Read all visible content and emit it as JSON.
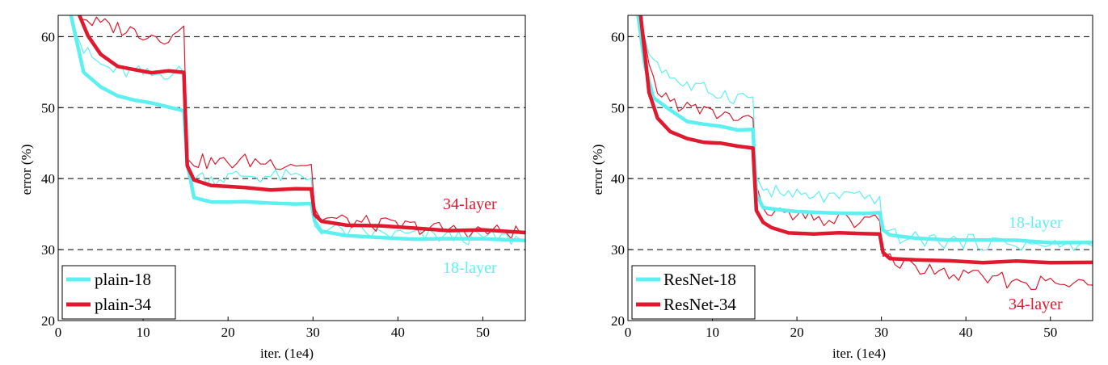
{
  "chart_data": [
    {
      "type": "line",
      "xlabel": "iter. (1e4)",
      "ylabel": "error (%)",
      "xlim": [
        0,
        55
      ],
      "ylim": [
        20,
        63
      ],
      "xticks": [
        0,
        10,
        20,
        30,
        40,
        50
      ],
      "yticks": [
        20,
        30,
        40,
        50,
        60
      ],
      "grid": "dashed horizontal",
      "legend_position": "bottom-left",
      "series": [
        {
          "name": "plain-18",
          "role": "val",
          "color": "#5ef0f0",
          "x": [
            1.5,
            3,
            5,
            7,
            9,
            11,
            13,
            14.8,
            15.2,
            16,
            18,
            20,
            22,
            25,
            28,
            29.8,
            30.2,
            31,
            34,
            38,
            42,
            46,
            50,
            55
          ],
          "y": [
            63,
            55,
            53,
            51.5,
            51,
            50.5,
            50,
            49.7,
            42,
            37.5,
            36.8,
            36.6,
            36.7,
            36.7,
            36.6,
            36.6,
            34,
            32.6,
            32.1,
            31.9,
            31.6,
            31.5,
            31.4,
            31.3
          ]
        },
        {
          "name": "plain-34",
          "role": "val",
          "color": "#e0192e",
          "x": [
            2.5,
            3.5,
            5,
            7,
            9,
            11,
            13,
            14.8,
            15.2,
            16,
            18,
            20,
            22,
            25,
            28,
            29.8,
            30.2,
            31,
            34,
            38,
            42,
            46,
            50,
            55
          ],
          "y": [
            63,
            60,
            57.5,
            56,
            55.5,
            55,
            55,
            55,
            42,
            39.8,
            39,
            38.8,
            38.7,
            38.6,
            38.6,
            38.6,
            35,
            34,
            33.5,
            33.2,
            32.9,
            32.7,
            32.6,
            32.4
          ]
        },
        {
          "name": "plain-18 train",
          "role": "train",
          "color": "#5ef0f0",
          "x": [
            1.5,
            3,
            5,
            7,
            9,
            11,
            13,
            14.8,
            15.2,
            16,
            18,
            20,
            22,
            25,
            28,
            29.8,
            30.2,
            31,
            34,
            38,
            42,
            46,
            50,
            55
          ],
          "y": [
            63,
            58,
            56,
            55,
            55,
            54.5,
            55,
            55,
            41.5,
            40.5,
            40,
            40.2,
            40.5,
            40.3,
            40.2,
            40,
            33.5,
            33,
            32.5,
            32.2,
            32,
            31.8,
            31.7,
            31.5
          ]
        },
        {
          "name": "plain-34 train",
          "role": "train",
          "color": "#e0192e",
          "x": [
            2.7,
            4,
            6,
            8,
            10,
            12,
            14,
            14.8,
            15.2,
            16,
            18,
            20,
            22,
            25,
            28,
            29.8,
            30.2,
            31,
            34,
            38,
            42,
            46,
            50,
            55
          ],
          "y": [
            63,
            62,
            61.5,
            61,
            60.5,
            60,
            60,
            61.5,
            43.5,
            42.5,
            42.3,
            42.2,
            42.5,
            42.3,
            42.2,
            42,
            35.5,
            34.5,
            34,
            33.5,
            33.2,
            32.8,
            32.6,
            32.4
          ]
        }
      ],
      "annotations": [
        {
          "text": "34-layer",
          "color": "#e0192e"
        },
        {
          "text": "18-layer",
          "color": "#5ef0f0"
        }
      ]
    },
    {
      "type": "line",
      "xlabel": "iter. (1e4)",
      "ylabel": "error (%)",
      "xlim": [
        0,
        55
      ],
      "ylim": [
        20,
        63
      ],
      "xticks": [
        0,
        10,
        20,
        30,
        40,
        50
      ],
      "yticks": [
        20,
        30,
        40,
        50,
        60
      ],
      "grid": "dashed horizontal",
      "legend_position": "bottom-left",
      "series": [
        {
          "name": "ResNet-18",
          "role": "val",
          "color": "#5ef0f0",
          "x": [
            1.2,
            2,
            3,
            5,
            7,
            9,
            11,
            13,
            14.8,
            15.2,
            16,
            18,
            20,
            22,
            25,
            28,
            29.8,
            30.2,
            31,
            34,
            38,
            42,
            46,
            50,
            55
          ],
          "y": [
            63,
            56,
            51.5,
            49.5,
            48,
            47.5,
            47.3,
            47,
            46.8,
            38,
            36,
            35.5,
            35.3,
            35.4,
            35.3,
            35.2,
            35.2,
            32.8,
            32.2,
            31.8,
            31.5,
            31.3,
            31.2,
            31.1,
            31
          ]
        },
        {
          "name": "ResNet-34",
          "role": "val",
          "color": "#e0192e",
          "x": [
            1.5,
            2.5,
            3.5,
            5,
            7,
            9,
            11,
            13,
            14.8,
            15.2,
            16,
            17,
            19,
            22,
            25,
            28,
            29.8,
            30.2,
            31,
            34,
            38,
            42,
            46,
            50,
            55
          ],
          "y": [
            63,
            52,
            48.5,
            46.8,
            45.8,
            45.2,
            44.8,
            44.6,
            44.5,
            35.5,
            33.8,
            33,
            32.3,
            32.4,
            32.4,
            32.3,
            32.3,
            29.6,
            28.8,
            28.4,
            28.3,
            28.2,
            28.2,
            28.2,
            28.2
          ]
        },
        {
          "name": "ResNet-18 train",
          "role": "train",
          "color": "#5ef0f0",
          "x": [
            1.2,
            2,
            3,
            5,
            7,
            9,
            11,
            13,
            14.8,
            15.2,
            16,
            18,
            20,
            22,
            25,
            28,
            29.8,
            30.2,
            31,
            34,
            38,
            42,
            46,
            50,
            55
          ],
          "y": [
            63,
            59,
            57,
            54.5,
            53,
            52.5,
            52,
            51.5,
            51.5,
            40,
            38.5,
            38,
            37.5,
            37.5,
            37.3,
            37.2,
            37.5,
            33,
            32,
            31.5,
            31.2,
            31,
            30.8,
            30.5,
            30.5
          ]
        },
        {
          "name": "ResNet-34 train",
          "role": "train",
          "color": "#e0192e",
          "x": [
            1.5,
            2.5,
            3.5,
            5,
            7,
            9,
            11,
            13,
            14.8,
            15.2,
            16,
            18,
            20,
            22,
            25,
            28,
            29.8,
            30.2,
            31,
            34,
            38,
            42,
            46,
            50,
            55
          ],
          "y": [
            63,
            55,
            52.5,
            51,
            50,
            49.5,
            49,
            48.5,
            48.5,
            38,
            36,
            35,
            34.5,
            34.3,
            34.2,
            34,
            34,
            30,
            28.5,
            27.5,
            26.5,
            26,
            25.5,
            25.2,
            25
          ]
        }
      ],
      "annotations": [
        {
          "text": "18-layer",
          "color": "#5ef0f0"
        },
        {
          "text": "34-layer",
          "color": "#e0192e"
        }
      ]
    }
  ],
  "legends": [
    {
      "items": [
        "plain-18",
        "plain-34"
      ]
    },
    {
      "items": [
        "ResNet-18",
        "ResNet-34"
      ]
    }
  ]
}
